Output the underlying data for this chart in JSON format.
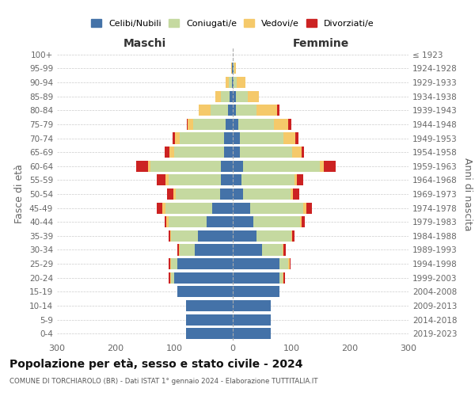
{
  "age_groups": [
    "0-4",
    "5-9",
    "10-14",
    "15-19",
    "20-24",
    "25-29",
    "30-34",
    "35-39",
    "40-44",
    "45-49",
    "50-54",
    "55-59",
    "60-64",
    "65-69",
    "70-74",
    "75-79",
    "80-84",
    "85-89",
    "90-94",
    "95-99",
    "100+"
  ],
  "birth_years": [
    "2019-2023",
    "2014-2018",
    "2009-2013",
    "2004-2008",
    "1999-2003",
    "1994-1998",
    "1989-1993",
    "1984-1988",
    "1979-1983",
    "1974-1978",
    "1969-1973",
    "1964-1968",
    "1959-1963",
    "1954-1958",
    "1949-1953",
    "1944-1948",
    "1939-1943",
    "1934-1938",
    "1929-1933",
    "1924-1928",
    "≤ 1923"
  ],
  "maschi": {
    "celibi": [
      80,
      80,
      80,
      95,
      100,
      95,
      65,
      60,
      45,
      35,
      22,
      20,
      20,
      15,
      15,
      12,
      8,
      5,
      2,
      1,
      0
    ],
    "coniugati": [
      0,
      0,
      0,
      0,
      5,
      10,
      25,
      45,
      65,
      80,
      75,
      90,
      120,
      85,
      75,
      55,
      30,
      15,
      5,
      1,
      0
    ],
    "vedovi": [
      0,
      0,
      0,
      0,
      2,
      2,
      2,
      2,
      3,
      5,
      5,
      5,
      5,
      8,
      8,
      10,
      20,
      10,
      5,
      1,
      0
    ],
    "divorziati": [
      0,
      0,
      0,
      0,
      2,
      2,
      2,
      3,
      3,
      10,
      10,
      15,
      20,
      8,
      5,
      2,
      0,
      0,
      0,
      0,
      0
    ]
  },
  "femmine": {
    "nubili": [
      65,
      65,
      65,
      80,
      80,
      80,
      50,
      40,
      35,
      30,
      18,
      15,
      18,
      12,
      12,
      10,
      5,
      5,
      2,
      1,
      0
    ],
    "coniugate": [
      0,
      0,
      0,
      0,
      5,
      15,
      35,
      60,
      80,
      90,
      80,
      90,
      130,
      90,
      75,
      60,
      35,
      20,
      5,
      2,
      0
    ],
    "vedove": [
      0,
      0,
      0,
      0,
      2,
      2,
      2,
      2,
      3,
      5,
      5,
      5,
      8,
      15,
      20,
      25,
      35,
      20,
      15,
      3,
      0
    ],
    "divorziate": [
      0,
      0,
      0,
      0,
      2,
      2,
      3,
      3,
      5,
      10,
      10,
      10,
      20,
      5,
      5,
      5,
      5,
      0,
      0,
      0,
      0
    ]
  },
  "colors": {
    "celibi": "#4472a8",
    "coniugati": "#c5d9a0",
    "vedovi": "#f5c96a",
    "divorziati": "#cc2222"
  },
  "xlim": 300,
  "title": "Popolazione per età, sesso e stato civile - 2024",
  "subtitle": "COMUNE DI TORCHIAROLO (BR) - Dati ISTAT 1° gennaio 2024 - Elaborazione TUTTITALIA.IT",
  "ylabel_left": "Fasce di età",
  "ylabel_right": "Anni di nascita",
  "xlabel_maschi": "Maschi",
  "xlabel_femmine": "Femmine"
}
